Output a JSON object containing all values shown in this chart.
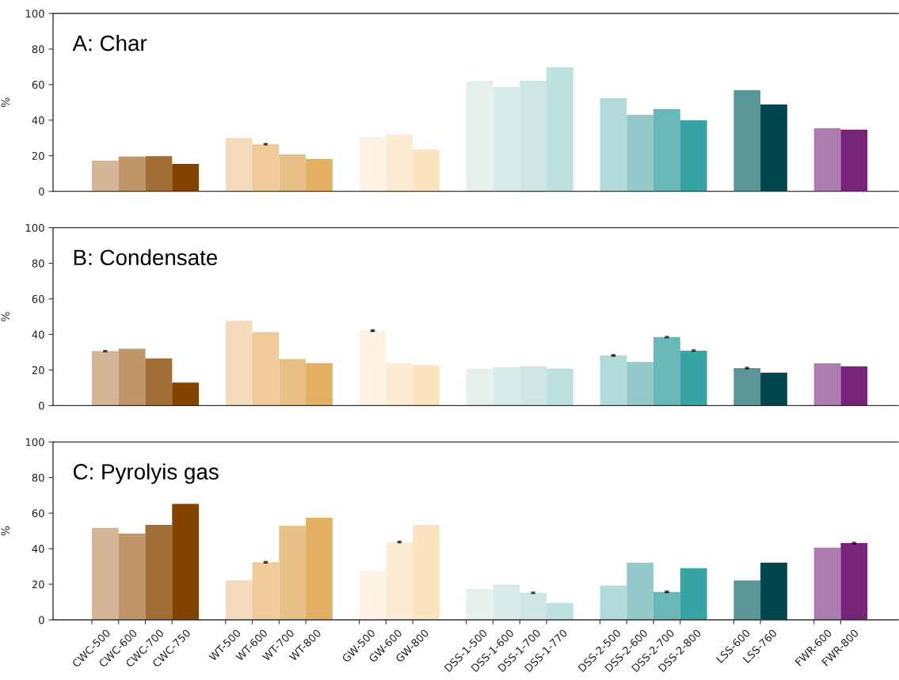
{
  "chart_data": [
    {
      "type": "bar",
      "title": "A: Char",
      "ylabel": "%",
      "tick_labels": "y",
      "categories": [
        "CWC-500",
        "CWC-600",
        "CWC-700",
        "CWC-750",
        null,
        "WT-500",
        "WT-600",
        "WT-700",
        "WT-800",
        null,
        "GW-500",
        "GW-600",
        "GW-800",
        null,
        "DSS-1-500",
        "DSS-1-600",
        "DSS-1-700",
        "DSS-1-770",
        null,
        "DSS-2-500",
        "DSS-2-600",
        "DSS-2-700",
        "DSS-2-800",
        null,
        "LSS-600",
        "LSS-760",
        null,
        "FWR-600",
        "FWR-800"
      ],
      "values": [
        17.2,
        19.5,
        19.8,
        15.4,
        null,
        30.0,
        26.5,
        20.8,
        18.2,
        null,
        30.5,
        32.0,
        23.5,
        null,
        62.2,
        58.6,
        62.2,
        69.7,
        null,
        52.4,
        43.0,
        46.2,
        39.9,
        null,
        56.8,
        48.8,
        null,
        35.5,
        34.7
      ],
      "errors": [
        null,
        null,
        null,
        null,
        null,
        null,
        0.4,
        null,
        null,
        null,
        null,
        null,
        null,
        null,
        null,
        null,
        null,
        null,
        null,
        null,
        null,
        null,
        null,
        null,
        null,
        null,
        null,
        null,
        null
      ],
      "colors": [
        "#d3b696",
        "#c0956a",
        "#a06d35",
        "#844400",
        null,
        "#f3dbbb",
        "#efcb9b",
        "#e6c086",
        "#e2af63",
        null,
        "#fdf2e4",
        "#fcecd4",
        "#fde4c0",
        null,
        "#e5f1ef",
        "#d8eae9",
        "#cfe5e4",
        "#bde0e0",
        null,
        "#b3dadb",
        "#94c9ca",
        "#6ab7b7",
        "#37a4a4",
        null,
        "#5a9697",
        "#00454d",
        null,
        "#ae7daf",
        "#762478"
      ],
      "ylim": [
        0,
        100
      ],
      "yticks": [
        0,
        20,
        40,
        60,
        80,
        100
      ]
    },
    {
      "type": "bar",
      "title": "B: Condensate",
      "ylabel": "%",
      "tick_labels": "y",
      "categories": [
        "CWC-500",
        "CWC-600",
        "CWC-700",
        "CWC-750",
        null,
        "WT-500",
        "WT-600",
        "WT-700",
        "WT-800",
        null,
        "GW-500",
        "GW-600",
        "GW-800",
        null,
        "DSS-1-500",
        "DSS-1-600",
        "DSS-1-700",
        "DSS-1-770",
        null,
        "DSS-2-500",
        "DSS-2-600",
        "DSS-2-700",
        "DSS-2-800",
        null,
        "LSS-600",
        "LSS-760",
        null,
        "FWR-600",
        "FWR-800"
      ],
      "values": [
        30.6,
        32.0,
        26.5,
        12.9,
        null,
        47.7,
        41.3,
        26.2,
        23.9,
        null,
        42.1,
        23.9,
        22.7,
        null,
        20.8,
        21.6,
        22.1,
        20.8,
        null,
        28.2,
        24.5,
        38.5,
        30.9,
        null,
        21.1,
        18.5,
        null,
        23.7,
        22.1
      ],
      "errors": [
        0.4,
        null,
        null,
        null,
        null,
        null,
        null,
        null,
        null,
        null,
        0.4,
        null,
        null,
        null,
        null,
        null,
        null,
        null,
        null,
        0.4,
        null,
        0.4,
        0.4,
        null,
        0.4,
        null,
        null,
        null,
        null
      ],
      "colors": [
        "#d3b696",
        "#c0956a",
        "#a06d35",
        "#844400",
        null,
        "#f3dbbb",
        "#efcb9b",
        "#e6c086",
        "#e2af63",
        null,
        "#fdf2e4",
        "#fcecd4",
        "#fde4c0",
        null,
        "#e5f1ef",
        "#d8eae9",
        "#cfe5e4",
        "#bde0e0",
        null,
        "#b3dadb",
        "#94c9ca",
        "#6ab7b7",
        "#37a4a4",
        null,
        "#5a9697",
        "#00454d",
        null,
        "#ae7daf",
        "#762478"
      ],
      "ylim": [
        0,
        100
      ],
      "yticks": [
        0,
        20,
        40,
        60,
        80,
        100
      ]
    },
    {
      "type": "bar",
      "title": "C: Pyrolyis gas",
      "ylabel": "%",
      "categories": [
        "CWC-500",
        "CWC-600",
        "CWC-700",
        "CWC-750",
        null,
        "WT-500",
        "WT-600",
        "WT-700",
        "WT-800",
        null,
        "GW-500",
        "GW-600",
        "GW-800",
        null,
        "DSS-1-500",
        "DSS-1-600",
        "DSS-1-700",
        "DSS-1-770",
        null,
        "DSS-2-500",
        "DSS-2-600",
        "DSS-2-700",
        "DSS-2-800",
        null,
        "LSS-600",
        "LSS-760",
        null,
        "FWR-600",
        "FWR-800"
      ],
      "values": [
        51.6,
        48.5,
        53.4,
        65.2,
        null,
        22.2,
        32.4,
        52.9,
        57.4,
        null,
        27.5,
        43.7,
        53.4,
        null,
        17.2,
        19.8,
        15.2,
        9.5,
        null,
        19.3,
        32.2,
        15.7,
        29.0,
        null,
        22.1,
        32.2,
        null,
        40.6,
        43.2
      ],
      "errors": [
        null,
        null,
        null,
        null,
        null,
        null,
        0.4,
        null,
        null,
        null,
        null,
        0.4,
        null,
        null,
        null,
        null,
        0.4,
        null,
        null,
        null,
        null,
        0.4,
        null,
        null,
        null,
        null,
        null,
        null,
        0.4
      ],
      "colors": [
        "#d3b696",
        "#c0956a",
        "#a06d35",
        "#844400",
        null,
        "#f3dbbb",
        "#efcb9b",
        "#e6c086",
        "#e2af63",
        null,
        "#fdf2e4",
        "#fcecd4",
        "#fde4c0",
        null,
        "#e5f1ef",
        "#d8eae9",
        "#cfe5e4",
        "#bde0e0",
        null,
        "#b3dadb",
        "#94c9ca",
        "#6ab7b7",
        "#37a4a4",
        null,
        "#5a9697",
        "#00454d",
        null,
        "#ae7daf",
        "#762478"
      ],
      "ylim": [
        0,
        100
      ],
      "yticks": [
        0,
        20,
        40,
        60,
        80,
        100
      ]
    }
  ]
}
